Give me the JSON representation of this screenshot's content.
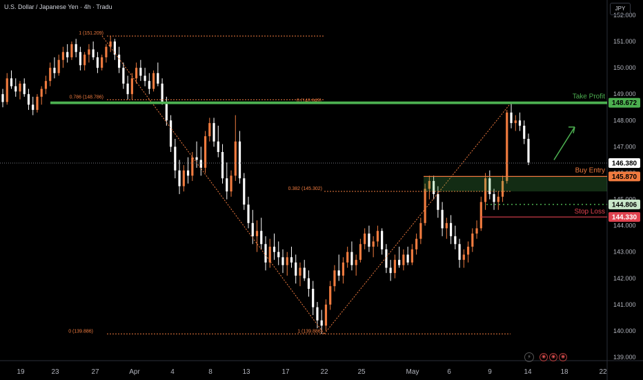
{
  "header": {
    "title": "U.S. Dollar / Japanese Yen · 4h · Tradu",
    "currency_button": "JPY"
  },
  "chart_data": {
    "type": "candlestick",
    "ylim": [
      139.0,
      152.0
    ],
    "y_ticks": [
      "152.000",
      "151.000",
      "150.000",
      "149.000",
      "148.000",
      "147.000",
      "146.000",
      "145.000",
      "144.000",
      "143.000",
      "142.000",
      "141.000",
      "140.000",
      "139.000"
    ],
    "x_ticks": [
      "19",
      "23",
      "27",
      "Apr",
      "4",
      "8",
      "13",
      "17",
      "22",
      "25",
      "May",
      "6",
      "9",
      "14",
      "18",
      "22"
    ],
    "last_price": "146.380",
    "levels": [
      {
        "name": "Take Profit",
        "label": "Take Profit",
        "value": 148.672,
        "tag": "148.672",
        "color": "#4caf50"
      },
      {
        "name": "Buy Entry",
        "label": "Buy Entry",
        "value": 145.87,
        "tag": "145.870",
        "color": "#f07b3f"
      },
      {
        "name": "Pending",
        "label": "",
        "value": 144.806,
        "tag": "144.806",
        "color": "#4caf50"
      },
      {
        "name": "Stop Loss",
        "label": "Stop Loss",
        "value": 144.33,
        "tag": "144.330",
        "color": "#e0424f"
      }
    ],
    "fib_labels": [
      {
        "text": "1 (151.209)",
        "value": 151.209
      },
      {
        "text": "0.786 (148.786)",
        "value": 148.786
      },
      {
        "text": "0 (148.649)",
        "value": 148.649
      },
      {
        "text": "0.382 (145.302)",
        "value": 145.302
      },
      {
        "text": "0 (139.886)",
        "value": 139.886
      },
      {
        "text": "1 (139.886)",
        "value": 139.886
      }
    ],
    "candles": [
      [
        149.0,
        149.2,
        148.5,
        148.7
      ],
      [
        148.7,
        149.8,
        148.6,
        149.6
      ],
      [
        149.6,
        149.9,
        149.2,
        149.3
      ],
      [
        149.3,
        149.6,
        148.9,
        149.1
      ],
      [
        149.1,
        149.5,
        148.8,
        149.4
      ],
      [
        149.4,
        149.6,
        148.9,
        149.0
      ],
      [
        149.0,
        149.2,
        148.4,
        148.6
      ],
      [
        148.6,
        148.9,
        148.2,
        148.4
      ],
      [
        148.4,
        149.0,
        148.3,
        148.9
      ],
      [
        148.9,
        149.3,
        148.6,
        149.2
      ],
      [
        149.2,
        149.7,
        149.0,
        149.5
      ],
      [
        149.5,
        150.2,
        149.3,
        150.0
      ],
      [
        150.0,
        150.4,
        149.6,
        149.8
      ],
      [
        149.8,
        150.5,
        149.7,
        150.3
      ],
      [
        150.3,
        150.8,
        150.0,
        150.6
      ],
      [
        150.6,
        150.9,
        150.2,
        150.4
      ],
      [
        150.4,
        151.0,
        150.3,
        150.9
      ],
      [
        150.9,
        151.1,
        150.4,
        150.6
      ],
      [
        150.6,
        150.8,
        149.9,
        150.1
      ],
      [
        150.1,
        150.6,
        149.9,
        150.5
      ],
      [
        150.5,
        150.9,
        150.2,
        150.7
      ],
      [
        150.7,
        151.0,
        150.3,
        150.4
      ],
      [
        150.4,
        150.6,
        149.8,
        150.0
      ],
      [
        150.0,
        150.5,
        149.9,
        150.4
      ],
      [
        150.4,
        150.9,
        150.2,
        150.8
      ],
      [
        150.8,
        151.21,
        150.6,
        151.0
      ],
      [
        151.0,
        151.1,
        150.3,
        150.5
      ],
      [
        150.5,
        150.8,
        149.8,
        150.0
      ],
      [
        150.0,
        150.2,
        149.2,
        149.4
      ],
      [
        149.4,
        149.7,
        148.8,
        149.0
      ],
      [
        149.0,
        149.8,
        148.8,
        149.6
      ],
      [
        149.6,
        150.2,
        149.4,
        150.0
      ],
      [
        150.0,
        150.3,
        149.5,
        149.7
      ],
      [
        149.7,
        150.0,
        149.3,
        149.5
      ],
      [
        149.5,
        149.8,
        149.0,
        149.2
      ],
      [
        149.2,
        149.9,
        149.1,
        149.8
      ],
      [
        149.8,
        150.2,
        149.3,
        149.4
      ],
      [
        149.4,
        149.6,
        148.6,
        148.7
      ],
      [
        148.7,
        148.9,
        147.8,
        148.0
      ],
      [
        148.0,
        148.2,
        146.8,
        147.0
      ],
      [
        147.0,
        147.3,
        145.8,
        146.1
      ],
      [
        146.1,
        146.5,
        145.2,
        145.5
      ],
      [
        145.5,
        146.3,
        145.3,
        146.1
      ],
      [
        146.1,
        146.6,
        145.6,
        145.9
      ],
      [
        145.9,
        146.8,
        145.7,
        146.6
      ],
      [
        146.6,
        147.2,
        146.2,
        146.5
      ],
      [
        146.5,
        147.0,
        145.9,
        146.2
      ],
      [
        146.2,
        147.6,
        146.0,
        147.4
      ],
      [
        147.4,
        148.1,
        147.2,
        147.9
      ],
      [
        147.9,
        148.1,
        147.0,
        147.2
      ],
      [
        147.2,
        147.8,
        146.6,
        146.8
      ],
      [
        146.8,
        147.1,
        145.6,
        145.8
      ],
      [
        145.8,
        146.4,
        145.0,
        145.3
      ],
      [
        145.3,
        146.1,
        145.1,
        145.9
      ],
      [
        145.9,
        148.2,
        145.7,
        147.2
      ],
      [
        147.2,
        147.6,
        145.6,
        145.8
      ],
      [
        145.8,
        146.0,
        144.6,
        144.8
      ],
      [
        144.8,
        145.1,
        143.9,
        144.1
      ],
      [
        144.1,
        144.6,
        143.3,
        143.6
      ],
      [
        143.6,
        144.2,
        143.0,
        143.8
      ],
      [
        143.8,
        144.3,
        143.1,
        143.3
      ],
      [
        143.3,
        143.6,
        142.3,
        142.6
      ],
      [
        142.6,
        143.5,
        142.4,
        143.2
      ],
      [
        143.2,
        143.7,
        142.7,
        143.0
      ],
      [
        143.0,
        143.4,
        142.5,
        142.8
      ],
      [
        142.8,
        143.1,
        142.2,
        142.5
      ],
      [
        142.5,
        143.0,
        142.1,
        142.8
      ],
      [
        142.8,
        143.2,
        142.4,
        142.6
      ],
      [
        142.6,
        142.9,
        141.8,
        142.1
      ],
      [
        142.1,
        142.6,
        141.7,
        142.4
      ],
      [
        142.4,
        142.7,
        141.9,
        142.0
      ],
      [
        142.0,
        142.3,
        141.3,
        141.6
      ],
      [
        141.6,
        141.9,
        140.6,
        140.9
      ],
      [
        140.9,
        141.1,
        140.1,
        140.4
      ],
      [
        140.4,
        140.8,
        139.886,
        140.2
      ],
      [
        140.2,
        141.2,
        140.0,
        141.0
      ],
      [
        141.0,
        141.9,
        140.8,
        141.7
      ],
      [
        141.7,
        142.5,
        141.5,
        142.3
      ],
      [
        142.3,
        142.9,
        141.9,
        142.1
      ],
      [
        142.1,
        142.8,
        141.8,
        142.6
      ],
      [
        142.6,
        143.2,
        142.4,
        143.0
      ],
      [
        143.0,
        143.4,
        142.3,
        142.5
      ],
      [
        142.5,
        142.9,
        142.1,
        142.7
      ],
      [
        142.7,
        143.5,
        142.6,
        143.3
      ],
      [
        143.3,
        143.9,
        143.1,
        143.7
      ],
      [
        143.7,
        144.0,
        143.0,
        143.2
      ],
      [
        143.2,
        143.6,
        142.8,
        143.4
      ],
      [
        143.4,
        144.0,
        143.2,
        143.8
      ],
      [
        143.8,
        143.9,
        142.9,
        143.1
      ],
      [
        143.1,
        143.3,
        142.2,
        142.4
      ],
      [
        142.4,
        142.7,
        141.9,
        142.2
      ],
      [
        142.2,
        142.9,
        142.0,
        142.7
      ],
      [
        142.7,
        143.2,
        142.4,
        142.5
      ],
      [
        142.5,
        143.1,
        142.3,
        142.9
      ],
      [
        142.9,
        143.2,
        142.5,
        142.6
      ],
      [
        142.6,
        143.3,
        142.5,
        143.1
      ],
      [
        143.1,
        143.7,
        142.9,
        143.5
      ],
      [
        143.5,
        144.3,
        143.3,
        144.1
      ],
      [
        144.1,
        145.6,
        144.0,
        145.4
      ],
      [
        145.4,
        145.9,
        145.0,
        145.7
      ],
      [
        145.7,
        145.9,
        145.0,
        145.2
      ],
      [
        145.2,
        145.5,
        144.3,
        144.6
      ],
      [
        144.6,
        144.9,
        143.6,
        143.9
      ],
      [
        143.9,
        144.3,
        143.5,
        144.1
      ],
      [
        144.1,
        144.4,
        143.3,
        143.6
      ],
      [
        143.6,
        144.0,
        143.1,
        143.3
      ],
      [
        143.3,
        143.5,
        142.4,
        142.7
      ],
      [
        142.7,
        143.1,
        142.4,
        142.9
      ],
      [
        142.9,
        143.4,
        142.6,
        143.2
      ],
      [
        143.2,
        143.9,
        143.0,
        143.7
      ],
      [
        143.7,
        144.2,
        143.5,
        143.9
      ],
      [
        143.9,
        145.1,
        143.8,
        144.9
      ],
      [
        144.9,
        146.0,
        144.6,
        145.8
      ],
      [
        145.8,
        146.1,
        145.0,
        145.2
      ],
      [
        145.2,
        145.4,
        144.6,
        144.9
      ],
      [
        144.9,
        145.3,
        144.6,
        145.1
      ],
      [
        145.1,
        145.9,
        144.9,
        145.7
      ],
      [
        145.7,
        148.4,
        145.6,
        148.3
      ],
      [
        148.3,
        148.649,
        147.7,
        147.9
      ],
      [
        147.9,
        148.2,
        147.6,
        148.0
      ],
      [
        148.0,
        148.3,
        147.6,
        147.8
      ],
      [
        147.8,
        148.0,
        147.1,
        147.3
      ],
      [
        147.3,
        147.5,
        146.3,
        146.4
      ]
    ]
  }
}
